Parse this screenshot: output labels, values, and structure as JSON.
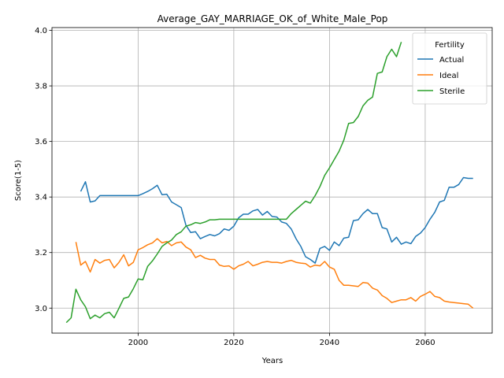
{
  "chart_data": {
    "type": "line",
    "title": "Average_GAY_MARRIAGE_OK_of_White_Male_Pop",
    "xlabel": "Years",
    "ylabel": "Score(1-5)",
    "xlim": [
      1982,
      2074
    ],
    "ylim": [
      2.91,
      4.01
    ],
    "xticks": [
      2000,
      2020,
      2040,
      2060
    ],
    "yticks": [
      3.0,
      3.2,
      3.4,
      3.6,
      3.8,
      4.0
    ],
    "ytick_labels": [
      "3.0",
      "3.2",
      "3.4",
      "3.6",
      "3.8",
      "4.0"
    ],
    "grid": true,
    "legend": {
      "title": "Fertility",
      "placement": "top-right"
    },
    "series": [
      {
        "name": "Actual",
        "color": "#1f77b4",
        "x": [
          1988,
          1989,
          1990,
          1991,
          1992,
          1993,
          1994,
          1995,
          1996,
          1997,
          1998,
          1999,
          2000,
          2001,
          2002,
          2003,
          2004,
          2005,
          2006,
          2007,
          2008,
          2009,
          2010,
          2011,
          2012,
          2013,
          2014,
          2015,
          2016,
          2017,
          2018,
          2019,
          2020,
          2021,
          2022,
          2023,
          2024,
          2025,
          2026,
          2027,
          2028,
          2029,
          2030,
          2031,
          2032,
          2033,
          2034,
          2035,
          2036,
          2037,
          2038,
          2039,
          2040,
          2041,
          2042,
          2043,
          2044,
          2045,
          2046,
          2047,
          2048,
          2049,
          2050,
          2051,
          2052,
          2053,
          2054,
          2055,
          2056,
          2057,
          2058,
          2059,
          2060,
          2061,
          2062,
          2063,
          2064,
          2065,
          2066,
          2067,
          2068,
          2069,
          2070
        ],
        "y": [
          3.42,
          3.455,
          3.382,
          3.386,
          3.405,
          3.405,
          3.405,
          3.405,
          3.405,
          3.405,
          3.405,
          3.405,
          3.405,
          3.412,
          3.42,
          3.43,
          3.442,
          3.408,
          3.41,
          3.382,
          3.372,
          3.362,
          3.298,
          3.272,
          3.275,
          3.25,
          3.258,
          3.265,
          3.26,
          3.268,
          3.285,
          3.28,
          3.295,
          3.325,
          3.338,
          3.338,
          3.35,
          3.355,
          3.335,
          3.348,
          3.33,
          3.328,
          3.31,
          3.305,
          3.285,
          3.25,
          3.222,
          3.185,
          3.175,
          3.162,
          3.215,
          3.222,
          3.208,
          3.238,
          3.225,
          3.252,
          3.255,
          3.315,
          3.318,
          3.34,
          3.355,
          3.34,
          3.34,
          3.29,
          3.285,
          3.238,
          3.255,
          3.23,
          3.238,
          3.232,
          3.258,
          3.27,
          3.29,
          3.32,
          3.345,
          3.382,
          3.388,
          3.435,
          3.435,
          3.445,
          3.47,
          3.467,
          3.467
        ]
      },
      {
        "name": "Ideal",
        "color": "#ff7f0e",
        "x": [
          1987,
          1988,
          1989,
          1990,
          1991,
          1992,
          1993,
          1994,
          1995,
          1996,
          1997,
          1998,
          1999,
          2000,
          2001,
          2002,
          2003,
          2004,
          2005,
          2006,
          2007,
          2008,
          2009,
          2010,
          2011,
          2012,
          2013,
          2014,
          2015,
          2016,
          2017,
          2018,
          2019,
          2020,
          2021,
          2022,
          2023,
          2024,
          2025,
          2026,
          2027,
          2028,
          2029,
          2030,
          2031,
          2032,
          2033,
          2034,
          2035,
          2036,
          2037,
          2038,
          2039,
          2040,
          2041,
          2042,
          2043,
          2044,
          2045,
          2046,
          2047,
          2048,
          2049,
          2050,
          2051,
          2052,
          2053,
          2054,
          2055,
          2056,
          2057,
          2058,
          2059,
          2060,
          2061,
          2062,
          2063,
          2064,
          2065,
          2066,
          2067,
          2068,
          2069,
          2070
        ],
        "y": [
          3.238,
          3.155,
          3.168,
          3.13,
          3.175,
          3.162,
          3.172,
          3.175,
          3.145,
          3.165,
          3.192,
          3.152,
          3.165,
          3.21,
          3.218,
          3.228,
          3.235,
          3.25,
          3.235,
          3.24,
          3.225,
          3.235,
          3.238,
          3.22,
          3.21,
          3.182,
          3.19,
          3.18,
          3.175,
          3.175,
          3.155,
          3.15,
          3.152,
          3.14,
          3.152,
          3.158,
          3.168,
          3.152,
          3.158,
          3.165,
          3.168,
          3.165,
          3.165,
          3.162,
          3.168,
          3.172,
          3.165,
          3.162,
          3.16,
          3.148,
          3.155,
          3.152,
          3.168,
          3.148,
          3.14,
          3.1,
          3.082,
          3.082,
          3.08,
          3.078,
          3.092,
          3.09,
          3.072,
          3.065,
          3.045,
          3.035,
          3.02,
          3.025,
          3.03,
          3.03,
          3.038,
          3.025,
          3.042,
          3.05,
          3.06,
          3.042,
          3.038,
          3.025,
          3.022,
          3.02,
          3.018,
          3.016,
          3.014,
          3.0
        ]
      },
      {
        "name": "Sterile",
        "color": "#2ca02c",
        "x": [
          1985,
          1986,
          1987,
          1988,
          1989,
          1990,
          1991,
          1992,
          1993,
          1994,
          1995,
          1996,
          1997,
          1998,
          1999,
          2000,
          2001,
          2002,
          2003,
          2004,
          2005,
          2006,
          2007,
          2008,
          2009,
          2010,
          2011,
          2012,
          2013,
          2014,
          2015,
          2016,
          2017,
          2018,
          2019,
          2020,
          2021,
          2022,
          2023,
          2024,
          2025,
          2026,
          2027,
          2028,
          2029,
          2030,
          2031,
          2032,
          2033,
          2034,
          2035,
          2036,
          2037,
          2038,
          2039,
          2040,
          2041,
          2042,
          2043,
          2044,
          2045,
          2046,
          2047,
          2048,
          2049,
          2050,
          2051,
          2052,
          2053,
          2054,
          2055
        ],
        "y": [
          2.948,
          2.965,
          3.068,
          3.03,
          3.005,
          2.962,
          2.975,
          2.965,
          2.98,
          2.985,
          2.965,
          3.0,
          3.035,
          3.04,
          3.07,
          3.105,
          3.102,
          3.15,
          3.17,
          3.195,
          3.222,
          3.235,
          3.245,
          3.265,
          3.275,
          3.295,
          3.3,
          3.308,
          3.305,
          3.31,
          3.318,
          3.318,
          3.32,
          3.32,
          3.32,
          3.32,
          3.32,
          3.32,
          3.32,
          3.32,
          3.32,
          3.32,
          3.32,
          3.32,
          3.32,
          3.32,
          3.32,
          3.34,
          3.355,
          3.37,
          3.385,
          3.378,
          3.405,
          3.438,
          3.478,
          3.505,
          3.535,
          3.565,
          3.605,
          3.665,
          3.668,
          3.69,
          3.728,
          3.748,
          3.76,
          3.845,
          3.85,
          3.905,
          3.932,
          3.905,
          3.958
        ]
      }
    ]
  }
}
